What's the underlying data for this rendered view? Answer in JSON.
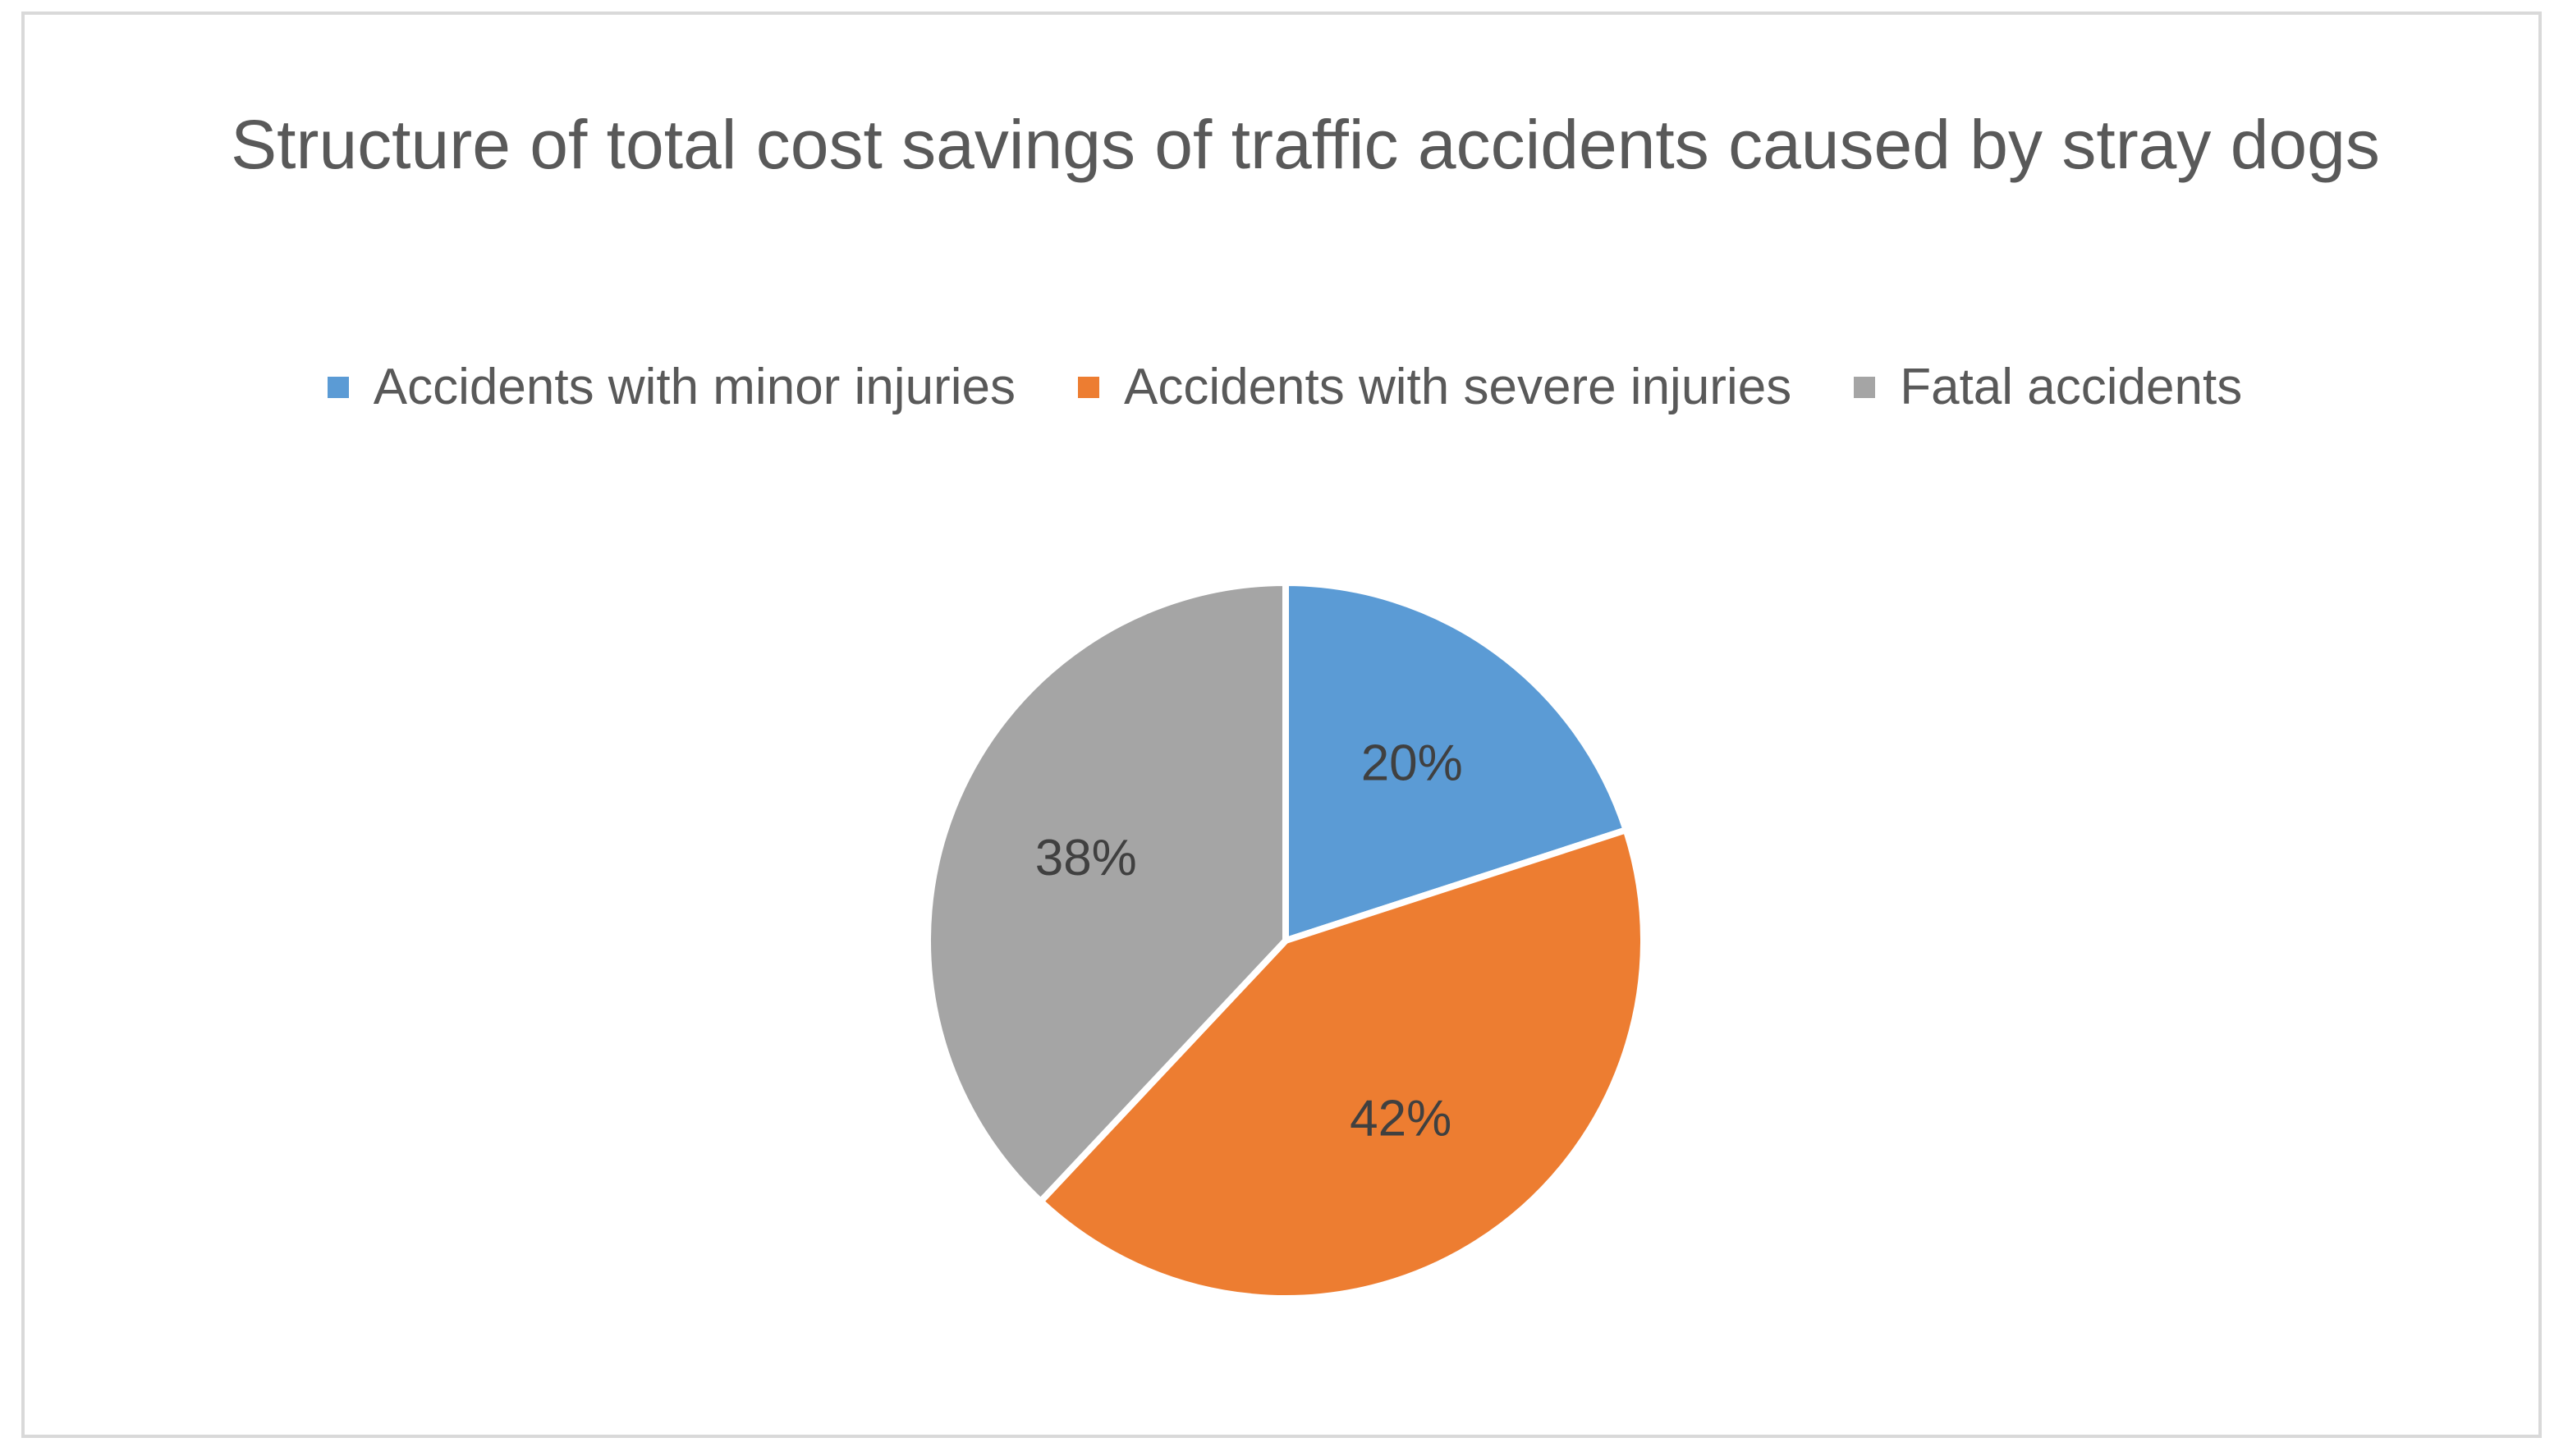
{
  "chart_data": {
    "type": "pie",
    "title": "Structure of total cost savings of traffic accidents caused by stray dogs",
    "categories": [
      "Accidents with minor injuries",
      "Accidents with severe injuries",
      "Fatal accidents"
    ],
    "values": [
      20,
      42,
      38
    ],
    "data_labels": [
      "20%",
      "42%",
      "38%"
    ],
    "colors": [
      "#5b9bd5",
      "#ed7d31",
      "#a5a5a5"
    ],
    "slice_border_color": "#ffffff",
    "legend_position": "top"
  }
}
